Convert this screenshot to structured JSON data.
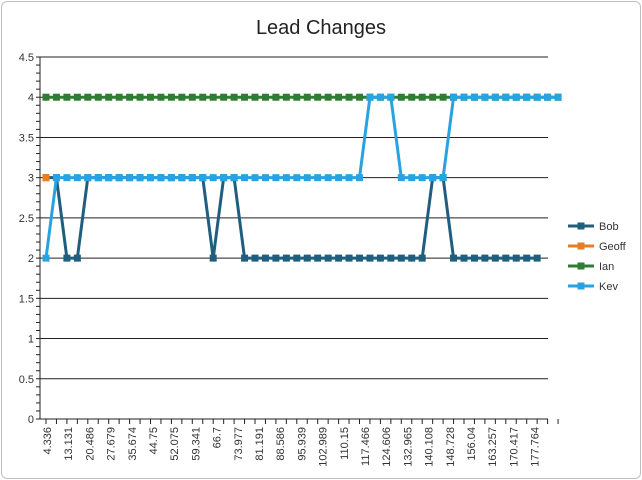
{
  "chart_data": {
    "type": "line",
    "title": "Lead Changes",
    "xlabel": "",
    "ylabel": "",
    "ylim": [
      0,
      4.5
    ],
    "yticks": [
      "0",
      "0.5",
      "1",
      "1.5",
      "2",
      "2.5",
      "3",
      "3.5",
      "4",
      "4.5"
    ],
    "gridlines": "horizontal at every 0.5",
    "legend_position": "right",
    "x_tick_labels": [
      "4.336",
      "13.131",
      "20.486",
      "27.679",
      "35.674",
      "44.75",
      "52.075",
      "59.341",
      "66.7",
      "73.977",
      "81.191",
      "88.586",
      "95.939",
      "102.989",
      "110.15",
      "117.466",
      "124.606",
      "132.965",
      "140.108",
      "148.728",
      "156.04",
      "163.257",
      "170.417",
      "177.764"
    ],
    "series": [
      {
        "name": "Bob",
        "color": "#1f5e7f",
        "values": [
          3,
          3,
          2,
          2,
          3,
          3,
          3,
          3,
          3,
          3,
          3,
          3,
          3,
          3,
          3,
          3,
          2,
          3,
          3,
          2,
          2,
          2,
          2,
          2,
          2,
          2,
          2,
          2,
          2,
          2,
          2,
          2,
          2,
          2,
          2,
          2,
          2,
          3,
          3,
          2,
          2,
          2,
          2,
          2,
          2,
          2,
          2,
          2,
          null,
          null
        ]
      },
      {
        "name": "Geoff",
        "color": "#e67e22",
        "values": [
          3,
          null,
          null,
          null,
          null,
          null,
          null,
          null,
          null,
          null,
          null,
          null,
          null,
          null,
          null,
          null,
          null,
          null,
          null,
          null,
          null,
          null,
          null,
          null,
          null,
          null,
          null,
          null,
          null,
          null,
          null,
          null,
          null,
          null,
          null,
          null,
          null,
          null,
          null,
          null,
          null,
          null,
          null,
          null,
          null,
          null,
          null,
          null,
          null,
          null
        ]
      },
      {
        "name": "Ian",
        "color": "#2e7d32",
        "values": [
          4,
          4,
          4,
          4,
          4,
          4,
          4,
          4,
          4,
          4,
          4,
          4,
          4,
          4,
          4,
          4,
          4,
          4,
          4,
          4,
          4,
          4,
          4,
          4,
          4,
          4,
          4,
          4,
          4,
          4,
          4,
          4,
          4,
          4,
          4,
          4,
          4,
          4,
          4,
          4,
          4,
          4,
          4,
          4,
          4,
          4,
          4,
          4,
          4,
          4
        ]
      },
      {
        "name": "Kev",
        "color": "#29a3df",
        "values": [
          2,
          3,
          3,
          3,
          3,
          3,
          3,
          3,
          3,
          3,
          3,
          3,
          3,
          3,
          3,
          3,
          3,
          3,
          3,
          3,
          3,
          3,
          3,
          3,
          3,
          3,
          3,
          3,
          3,
          3,
          3,
          4,
          4,
          4,
          3,
          3,
          3,
          3,
          3,
          4,
          4,
          4,
          4,
          4,
          4,
          4,
          4,
          4,
          4,
          4
        ]
      }
    ]
  }
}
